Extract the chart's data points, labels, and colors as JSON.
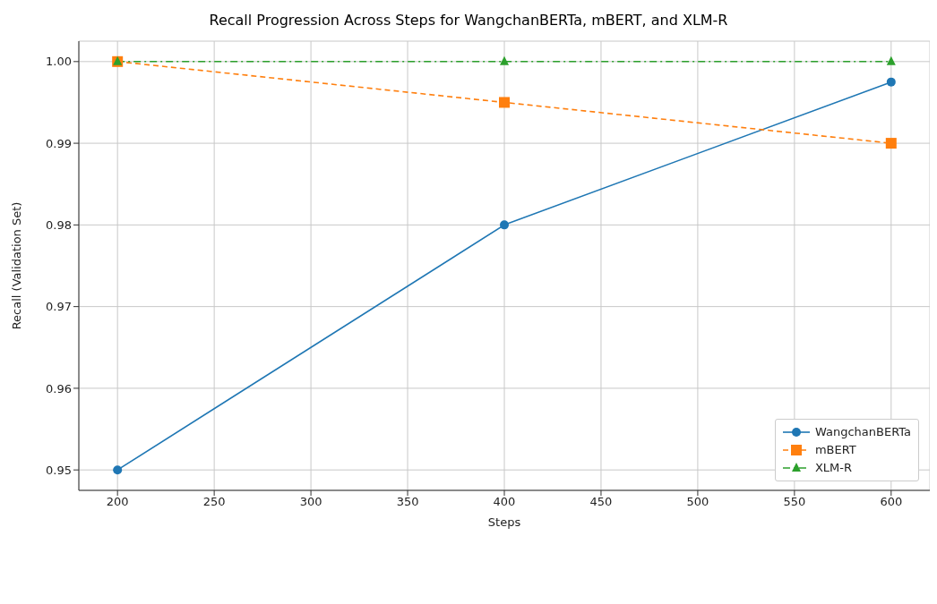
{
  "chart_data": {
    "type": "line",
    "title": "Recall Progression Across Steps for WangchanBERTa, mBERT, and XLM-R",
    "xlabel": "Steps",
    "ylabel": "Recall (Validation Set)",
    "x": [
      200,
      400,
      600
    ],
    "series": [
      {
        "name": "WangchanBERTa",
        "color": "#1f77b4",
        "values": [
          0.95,
          0.98,
          0.9975
        ],
        "marker": "circle",
        "line_style": "solid"
      },
      {
        "name": "mBERT",
        "color": "#ff7f0e",
        "values": [
          1.0,
          0.995,
          0.99
        ],
        "marker": "square",
        "line_style": "dashed"
      },
      {
        "name": "XLM-R",
        "color": "#2ca02c",
        "values": [
          1.0,
          1.0,
          1.0
        ],
        "marker": "triangle",
        "line_style": "dashdot"
      }
    ],
    "xlim": [
      180,
      620
    ],
    "xticks": [
      200,
      250,
      300,
      350,
      400,
      450,
      500,
      550,
      600
    ],
    "ylim": [
      0.9475,
      1.0025
    ],
    "yticks": [
      0.95,
      0.96,
      0.97,
      0.98,
      0.99,
      {
        "value": 1,
        "label": "1.00"
      }
    ],
    "grid": true,
    "legend": "bottom right"
  }
}
